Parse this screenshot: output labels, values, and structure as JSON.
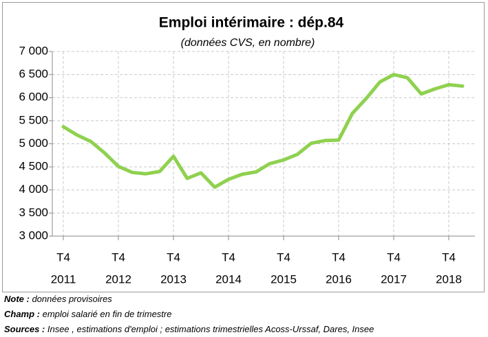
{
  "chart_data": {
    "type": "line",
    "title": "Emploi intérimaire : dép.84",
    "subtitle": "(données CVS, en nombre)",
    "categories": [
      [
        "T4",
        "2011"
      ],
      null,
      null,
      null,
      [
        "T4",
        "2012"
      ],
      null,
      null,
      null,
      [
        "T4",
        "2013"
      ],
      null,
      null,
      null,
      [
        "T4",
        "2014"
      ],
      null,
      null,
      null,
      [
        "T4",
        "2015"
      ],
      null,
      null,
      null,
      [
        "T4",
        "2016"
      ],
      null,
      null,
      null,
      [
        "T4",
        "2017"
      ],
      null,
      null,
      null,
      [
        "T4",
        "2018"
      ],
      null
    ],
    "series": [
      {
        "name": "Emploi intérimaire",
        "color": "#8fd14f",
        "values": [
          5370,
          5190,
          5050,
          4800,
          4510,
          4380,
          4350,
          4400,
          4730,
          4250,
          4370,
          4060,
          4230,
          4340,
          4390,
          4570,
          4650,
          4770,
          5010,
          5070,
          5080,
          5660,
          5980,
          6340,
          6500,
          6430,
          6080,
          6190,
          6280,
          6250
        ]
      }
    ],
    "ylim": [
      3000,
      7000
    ],
    "yticks": [
      {
        "value": 3000,
        "label": "3 000"
      },
      {
        "value": 3500,
        "label": "3 500"
      },
      {
        "value": 4000,
        "label": "4 000"
      },
      {
        "value": 4500,
        "label": "4 500"
      },
      {
        "value": 5000,
        "label": "5 000"
      },
      {
        "value": 5500,
        "label": "5 500"
      },
      {
        "value": 6000,
        "label": "6 000"
      },
      {
        "value": 6500,
        "label": "6 500"
      },
      {
        "value": 7000,
        "label": "7 000"
      }
    ],
    "grid": true
  },
  "notes": [
    {
      "label": "Note :",
      "text": " données provisoires"
    },
    {
      "label": "Champ :",
      "text": " emploi salarié en fin de trimestre"
    },
    {
      "label": "Sources :",
      "text": " Insee , estimations d'emploi ; estimations trimestrielles Acoss-Urssaf, Dares, Insee"
    }
  ]
}
